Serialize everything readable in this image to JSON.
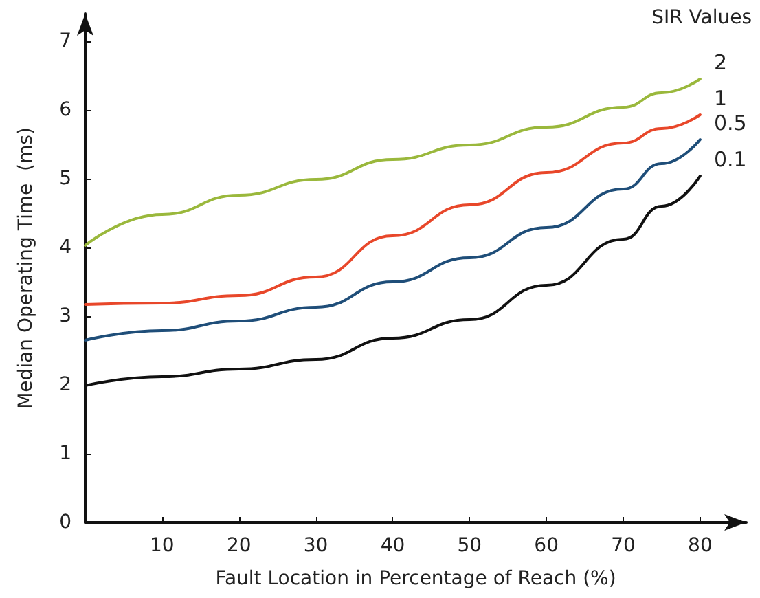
{
  "chart_data": {
    "type": "line",
    "xlabel": "Fault Location in Percentage of Reach (%)",
    "ylabel": "Median Operating Time  (ms)",
    "legend_title": "SIR Values",
    "legend": false,
    "grid": false,
    "marker": "none",
    "line_style": "solid",
    "x": [
      0,
      10,
      20,
      30,
      40,
      50,
      60,
      70,
      75,
      80
    ],
    "xlim": [
      0,
      86
    ],
    "xticks": [
      10,
      20,
      30,
      40,
      50,
      60,
      70,
      80
    ],
    "ylim": [
      0,
      7.4
    ],
    "yticks": [
      0,
      1,
      2,
      3,
      4,
      5,
      6,
      7
    ],
    "series": [
      {
        "name": "2",
        "color": "#9ab83c",
        "values": [
          4.03,
          4.48,
          4.76,
          4.99,
          5.28,
          5.49,
          5.75,
          6.04,
          6.25,
          6.45
        ]
      },
      {
        "name": "1",
        "color": "#e8472a",
        "values": [
          3.17,
          3.19,
          3.3,
          3.57,
          4.17,
          4.62,
          5.09,
          5.52,
          5.73,
          5.93
        ]
      },
      {
        "name": "0.5",
        "color": "#1f4e79",
        "values": [
          2.65,
          2.79,
          2.93,
          3.13,
          3.5,
          3.85,
          4.29,
          4.85,
          5.22,
          5.57
        ]
      },
      {
        "name": "0.1",
        "color": "#111111",
        "values": [
          1.99,
          2.12,
          2.23,
          2.37,
          2.68,
          2.95,
          3.45,
          4.12,
          4.6,
          5.04
        ]
      }
    ]
  }
}
